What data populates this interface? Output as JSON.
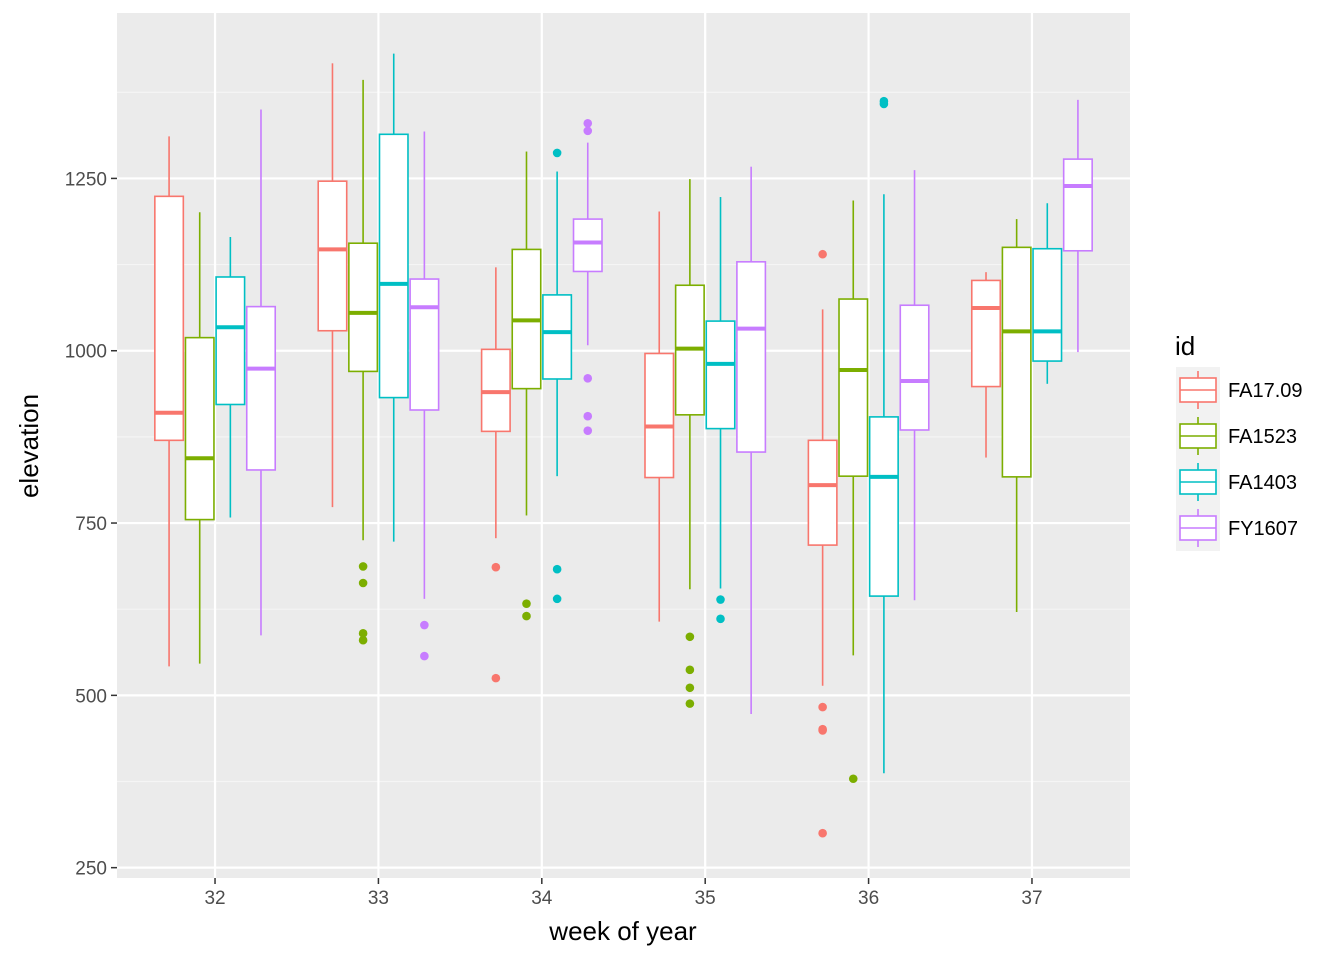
{
  "chart_data": {
    "type": "boxplot",
    "title": "",
    "xlabel": "week of year",
    "ylabel": "elevation",
    "x_categories": [
      "32",
      "33",
      "34",
      "35",
      "36",
      "37"
    ],
    "x_range": [
      31.4,
      37.6
    ],
    "ylim": [
      235,
      1490
    ],
    "y_ticks": [
      250,
      500,
      750,
      1000,
      1250
    ],
    "grid": true,
    "legend": {
      "title": "id",
      "position": "right"
    },
    "series": [
      {
        "name": "FA17.09",
        "color": "#F8766D",
        "boxes": [
          {
            "week": "32",
            "min": 542,
            "q1": 870,
            "median": 910,
            "q3": 1224,
            "max": 1311,
            "outliers": []
          },
          {
            "week": "33",
            "min": 773,
            "q1": 1029,
            "median": 1147,
            "q3": 1246,
            "max": 1417,
            "outliers": []
          },
          {
            "week": "34",
            "min": 728,
            "q1": 883,
            "median": 940,
            "q3": 1002,
            "max": 1121,
            "outliers": [
              686,
              525
            ]
          },
          {
            "week": "35",
            "min": 607,
            "q1": 816,
            "median": 890,
            "q3": 996,
            "max": 1202,
            "outliers": []
          },
          {
            "week": "36",
            "min": 514,
            "q1": 718,
            "median": 805,
            "q3": 870,
            "max": 1060,
            "outliers": [
              1140,
              483,
              451,
              449,
              300
            ]
          },
          {
            "week": "37",
            "min": 845,
            "q1": 948,
            "median": 1062,
            "q3": 1102,
            "max": 1114,
            "outliers": []
          }
        ]
      },
      {
        "name": "FA1523",
        "color": "#7CAE00",
        "boxes": [
          {
            "week": "32",
            "min": 546,
            "q1": 755,
            "median": 844,
            "q3": 1019,
            "max": 1201,
            "outliers": []
          },
          {
            "week": "33",
            "min": 725,
            "q1": 970,
            "median": 1055,
            "q3": 1156,
            "max": 1393,
            "outliers": [
              687,
              663,
              590,
              580
            ]
          },
          {
            "week": "34",
            "min": 761,
            "q1": 945,
            "median": 1044,
            "q3": 1147,
            "max": 1289,
            "outliers": [
              633,
              615
            ]
          },
          {
            "week": "35",
            "min": 654,
            "q1": 907,
            "median": 1003,
            "q3": 1095,
            "max": 1249,
            "outliers": [
              585,
              537,
              511,
              488
            ]
          },
          {
            "week": "36",
            "min": 558,
            "q1": 818,
            "median": 972,
            "q3": 1075,
            "max": 1218,
            "outliers": [
              379
            ]
          },
          {
            "week": "37",
            "min": 621,
            "q1": 817,
            "median": 1028,
            "q3": 1150,
            "max": 1191,
            "outliers": []
          }
        ]
      },
      {
        "name": "FA1403",
        "color": "#00BFC4",
        "boxes": [
          {
            "week": "32",
            "min": 758,
            "q1": 922,
            "median": 1034,
            "q3": 1107,
            "max": 1165,
            "outliers": []
          },
          {
            "week": "33",
            "min": 723,
            "q1": 932,
            "median": 1097,
            "q3": 1314,
            "max": 1431,
            "outliers": []
          },
          {
            "week": "34",
            "min": 818,
            "q1": 959,
            "median": 1027,
            "q3": 1081,
            "max": 1260,
            "outliers": [
              1287,
              683,
              640
            ]
          },
          {
            "week": "35",
            "min": 655,
            "q1": 887,
            "median": 981,
            "q3": 1043,
            "max": 1223,
            "outliers": [
              639,
              611
            ]
          },
          {
            "week": "36",
            "min": 387,
            "q1": 644,
            "median": 817,
            "q3": 904,
            "max": 1227,
            "outliers": [
              1362,
              1358
            ]
          },
          {
            "week": "37",
            "min": 952,
            "q1": 985,
            "median": 1028,
            "q3": 1148,
            "max": 1214,
            "outliers": []
          }
        ]
      },
      {
        "name": "FY1607",
        "color": "#C77CFF",
        "boxes": [
          {
            "week": "32",
            "min": 587,
            "q1": 827,
            "median": 974,
            "q3": 1064,
            "max": 1350,
            "outliers": []
          },
          {
            "week": "33",
            "min": 640,
            "q1": 914,
            "median": 1063,
            "q3": 1104,
            "max": 1318,
            "outliers": [
              602,
              557
            ]
          },
          {
            "week": "34",
            "min": 1008,
            "q1": 1115,
            "median": 1157,
            "q3": 1191,
            "max": 1302,
            "outliers": [
              1330,
              1319,
              960,
              905,
              884
            ]
          },
          {
            "week": "35",
            "min": 473,
            "q1": 853,
            "median": 1032,
            "q3": 1129,
            "max": 1267,
            "outliers": []
          },
          {
            "week": "36",
            "min": 638,
            "q1": 885,
            "median": 956,
            "q3": 1066,
            "max": 1262,
            "outliers": []
          },
          {
            "week": "37",
            "min": 998,
            "q1": 1145,
            "median": 1239,
            "q3": 1278,
            "max": 1364,
            "outliers": []
          }
        ]
      }
    ]
  }
}
